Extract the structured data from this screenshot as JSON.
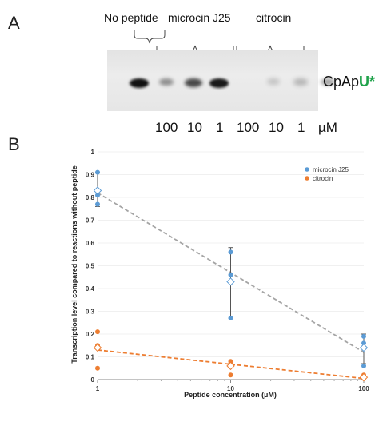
{
  "panel_a": {
    "letter": "A",
    "group_labels": [
      "No peptide",
      "microcin J25",
      "citrocin"
    ],
    "product_label_prefix": "CpAp",
    "product_label_u": "U*",
    "concentrations": [
      "100",
      "10",
      "1",
      "100",
      "10",
      "1"
    ],
    "unit": "µM",
    "band_color": "#111111",
    "product_u_color": "#1fa24a",
    "band_intensities": [
      1.0,
      0.35,
      0.7,
      0.95,
      0.08,
      0.15,
      0.3
    ]
  },
  "panel_b": {
    "letter": "B"
  },
  "chart_data": {
    "type": "scatter",
    "title": "",
    "xlabel": "Peptide concentration (µM)",
    "ylabel": "Transcription level compared to reactions without peptide",
    "xscale": "log",
    "xlim": [
      1,
      100
    ],
    "ylim": [
      0,
      1
    ],
    "x_ticks": [
      1,
      10,
      100
    ],
    "x_tick_labels": [
      "1",
      "10",
      "100"
    ],
    "y_ticks": [
      0,
      0.1,
      0.2,
      0.3,
      0.4,
      0.5,
      0.6,
      0.7,
      0.8,
      0.9,
      1
    ],
    "y_tick_labels": [
      "0",
      "0.1",
      "0.2",
      "0.3",
      "0.4",
      "0.5",
      "0.6",
      "0.7",
      "0.8",
      "0.9",
      "1"
    ],
    "legend_position": "top-right",
    "series": [
      {
        "name": "microcin J25",
        "color": "#5b9bd5",
        "points": [
          {
            "x": 1,
            "y": 0.91
          },
          {
            "x": 1,
            "y": 0.81
          },
          {
            "x": 1,
            "y": 0.77
          },
          {
            "x": 10,
            "y": 0.56
          },
          {
            "x": 10,
            "y": 0.46
          },
          {
            "x": 10,
            "y": 0.27
          },
          {
            "x": 100,
            "y": 0.19
          },
          {
            "x": 100,
            "y": 0.16
          },
          {
            "x": 100,
            "y": 0.06
          }
        ],
        "means": [
          {
            "x": 1,
            "y": 0.83
          },
          {
            "x": 10,
            "y": 0.43
          },
          {
            "x": 100,
            "y": 0.14
          }
        ],
        "error_bars": [
          {
            "x": 1,
            "low": 0.76,
            "high": 0.91
          },
          {
            "x": 10,
            "low": 0.27,
            "high": 0.58
          },
          {
            "x": 100,
            "low": 0.07,
            "high": 0.2
          }
        ],
        "trend": [
          {
            "x": 1,
            "y": 0.82
          },
          {
            "x": 100,
            "y": 0.12
          }
        ],
        "trend_color": "#a5a5a5"
      },
      {
        "name": "citrocin",
        "color": "#ed7d31",
        "points": [
          {
            "x": 1,
            "y": 0.21
          },
          {
            "x": 1,
            "y": 0.15
          },
          {
            "x": 1,
            "y": 0.05
          },
          {
            "x": 10,
            "y": 0.08
          },
          {
            "x": 10,
            "y": 0.07
          },
          {
            "x": 10,
            "y": 0.02
          },
          {
            "x": 100,
            "y": 0.02
          },
          {
            "x": 100,
            "y": 0.01
          },
          {
            "x": 100,
            "y": 0.005
          }
        ],
        "means": [
          {
            "x": 1,
            "y": 0.14
          },
          {
            "x": 10,
            "y": 0.06
          },
          {
            "x": 100,
            "y": 0.01
          }
        ],
        "error_bars": [],
        "trend": [
          {
            "x": 1,
            "y": 0.13
          },
          {
            "x": 100,
            "y": 0.005
          }
        ],
        "trend_color": "#ed7d31"
      }
    ]
  }
}
